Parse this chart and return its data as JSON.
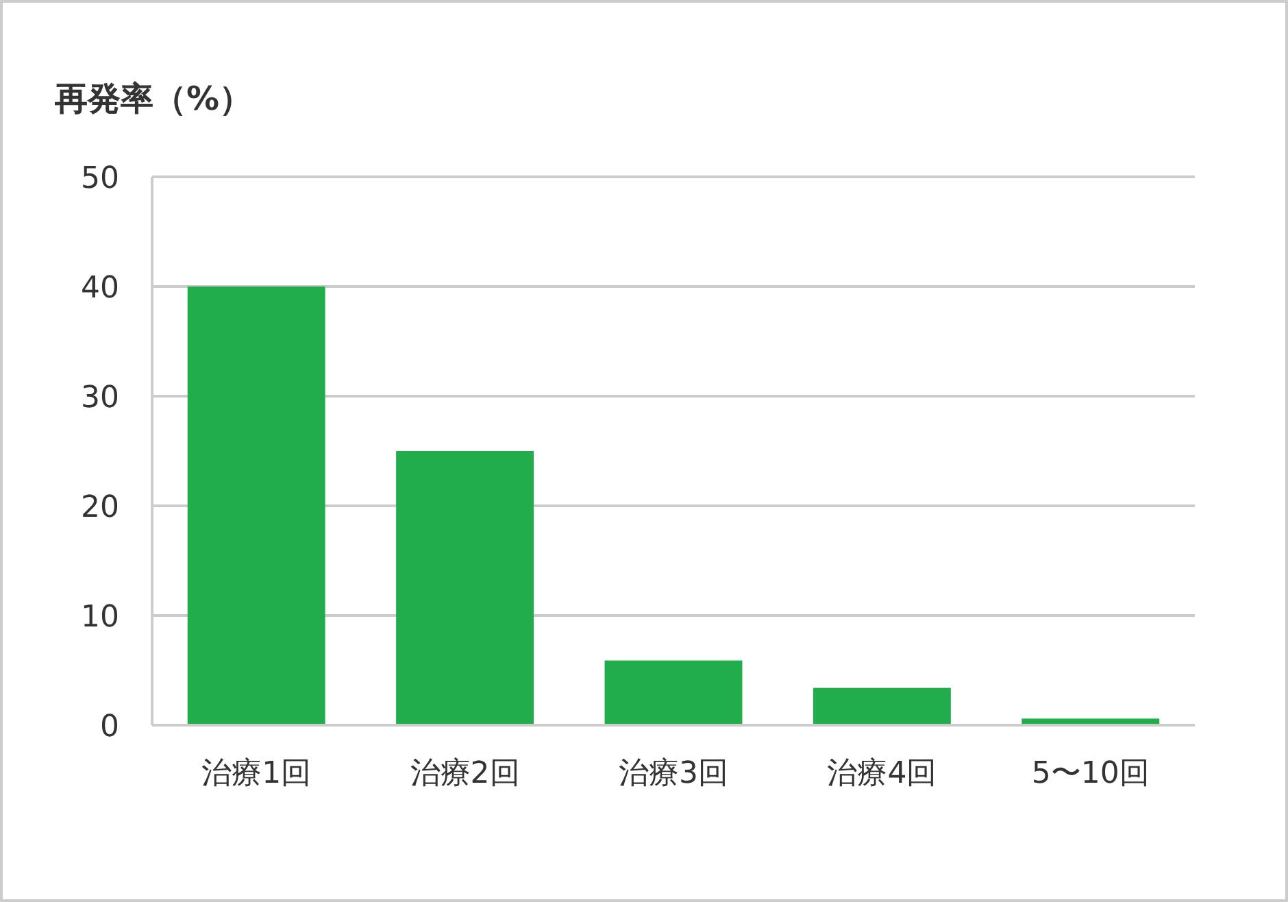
{
  "chart_data": {
    "type": "bar",
    "title": "再発率（%）",
    "categories": [
      "治療1回",
      "治療2回",
      "治療3回",
      "治療4回",
      "5〜10回"
    ],
    "values": [
      40,
      25,
      5.9,
      3.4,
      0.6
    ],
    "color": "#21ad4c",
    "ylim": [
      0,
      50
    ],
    "yticks": [
      0,
      10,
      20,
      30,
      40,
      50
    ],
    "grid": "y"
  }
}
